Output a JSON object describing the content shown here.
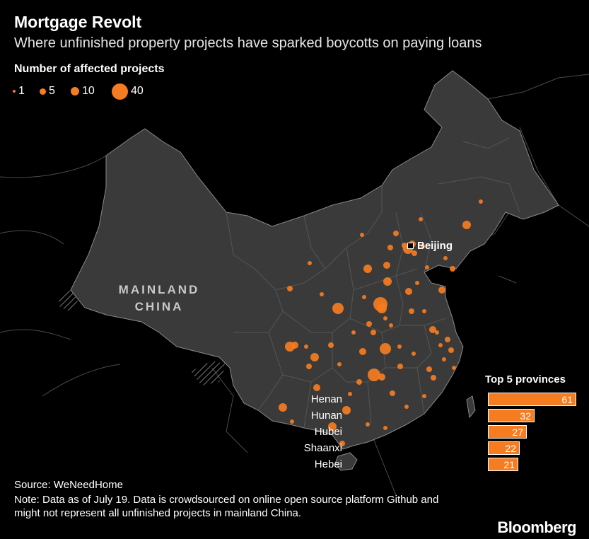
{
  "header": {
    "title": "Mortgage Revolt",
    "subtitle": "Where unfinished property projects have sparked boycotts on paying loans"
  },
  "legend": {
    "title": "Number of affected projects",
    "items": [
      {
        "label": "1",
        "value": 1
      },
      {
        "label": "5",
        "value": 5
      },
      {
        "label": "10",
        "value": 10
      },
      {
        "label": "40",
        "value": 40
      }
    ]
  },
  "map": {
    "region_label_line1": "MAINLAND",
    "region_label_line2": "CHINA",
    "city_label": "Beijing",
    "dot_color": "#f57c21",
    "land_color": "#3a3a3a",
    "border_color": "#5a5a5a"
  },
  "top_provinces": {
    "title": "Top 5 provinces",
    "bar_color": "#f57c21",
    "items": [
      {
        "name": "Henan",
        "value": 61
      },
      {
        "name": "Hunan",
        "value": 32
      },
      {
        "name": "Hubei",
        "value": 27
      },
      {
        "name": "Shaanxi",
        "value": 22
      },
      {
        "name": "Hebei",
        "value": 21
      }
    ]
  },
  "footer": {
    "source": "Source: WeNeedHome",
    "note": "Note: Data as of July 19. Data is crowdsourced on online open source platform Github and might not represent all unfinished projects in mainland China.",
    "brand": "Bloomberg"
  }
}
